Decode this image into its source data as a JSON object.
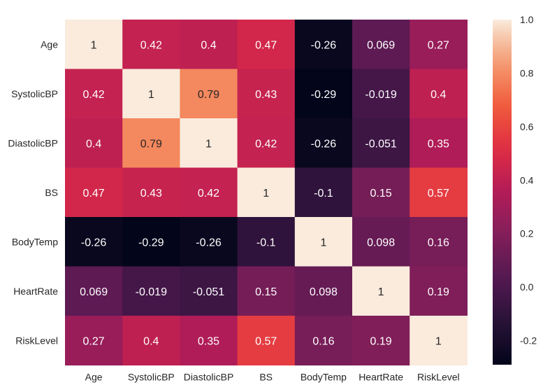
{
  "chart_data": {
    "type": "heatmap",
    "title": "",
    "xlabel": "",
    "ylabel": "",
    "rows": [
      "Age",
      "SystolicBP",
      "DiastolicBP",
      "BS",
      "BodyTemp",
      "HeartRate",
      "RiskLevel"
    ],
    "columns": [
      "Age",
      "SystolicBP",
      "DiastolicBP",
      "BS",
      "BodyTemp",
      "HeartRate",
      "RiskLevel"
    ],
    "values": [
      [
        1,
        0.42,
        0.4,
        0.47,
        -0.26,
        0.069,
        0.27
      ],
      [
        0.42,
        1,
        0.79,
        0.43,
        -0.29,
        -0.019,
        0.4
      ],
      [
        0.4,
        0.79,
        1,
        0.42,
        -0.26,
        -0.051,
        0.35
      ],
      [
        0.47,
        0.43,
        0.42,
        1,
        -0.1,
        0.15,
        0.57
      ],
      [
        -0.26,
        -0.29,
        -0.26,
        -0.1,
        1,
        0.098,
        0.16
      ],
      [
        0.069,
        -0.019,
        -0.051,
        0.15,
        0.098,
        1,
        0.19
      ],
      [
        0.27,
        0.4,
        0.35,
        0.57,
        0.16,
        0.19,
        1
      ]
    ],
    "labels": [
      [
        "1",
        "0.42",
        "0.4",
        "0.47",
        "-0.26",
        "0.069",
        "0.27"
      ],
      [
        "0.42",
        "1",
        "0.79",
        "0.43",
        "-0.29",
        "-0.019",
        "0.4"
      ],
      [
        "0.4",
        "0.79",
        "1",
        "0.42",
        "-0.26",
        "-0.051",
        "0.35"
      ],
      [
        "0.47",
        "0.43",
        "0.42",
        "1",
        "-0.1",
        "0.15",
        "0.57"
      ],
      [
        "-0.26",
        "-0.29",
        "-0.26",
        "-0.1",
        "1",
        "0.098",
        "0.16"
      ],
      [
        "0.069",
        "-0.019",
        "-0.051",
        "0.15",
        "0.098",
        "1",
        "0.19"
      ],
      [
        "0.27",
        "0.4",
        "0.35",
        "0.57",
        "0.16",
        "0.19",
        "1"
      ]
    ],
    "colorbar": {
      "range": [
        -0.29,
        1.0
      ],
      "ticks": [
        1.0,
        0.8,
        0.6,
        0.4,
        0.2,
        0.0,
        -0.2
      ],
      "tick_labels": [
        "1.0",
        "0.8",
        "0.6",
        "0.4",
        "0.2",
        "0.0",
        "-0.2"
      ],
      "colormap": "rocket"
    }
  }
}
